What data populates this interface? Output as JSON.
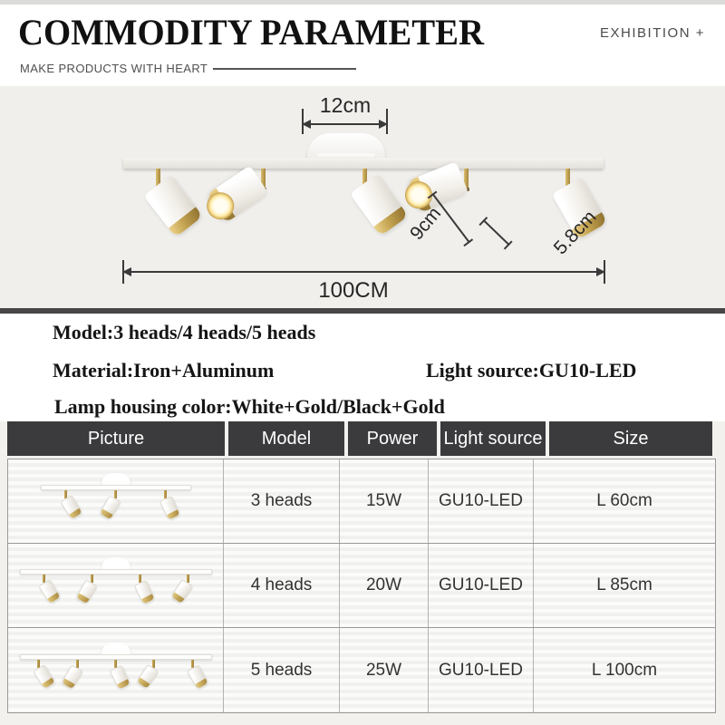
{
  "header": {
    "title": "COMMODITY PARAMETER",
    "corner_label": "EXHIBITION +",
    "tagline": "MAKE PRODUCTS WITH HEART"
  },
  "showcase": {
    "canopy_width_label": "12cm",
    "head_length_label": "9cm",
    "head_diameter_label": "5.8cm",
    "total_length_label": "100CM"
  },
  "specs": {
    "model": "Model:3 heads/4 heads/5 heads",
    "material": "Material:Iron+Aluminum",
    "light_source": "Light source:GU10-LED",
    "lamp_color": "Lamp housing color:White+Gold/Black+Gold"
  },
  "table": {
    "headers": [
      "Picture",
      "Model",
      "Power",
      "Light source",
      "Size"
    ],
    "rows": [
      {
        "heads_count": 3,
        "model": "3 heads",
        "power": "15W",
        "light_source": "GU10-LED",
        "size": "L 60cm"
      },
      {
        "heads_count": 4,
        "model": "4 heads",
        "power": "20W",
        "light_source": "GU10-LED",
        "size": "L 85cm"
      },
      {
        "heads_count": 5,
        "model": "5 heads",
        "power": "25W",
        "light_source": "GU10-LED",
        "size": "L 100cm"
      }
    ]
  },
  "colors": {
    "gold": "#bb9a4d",
    "table_header_bg": "#3b3b3d",
    "text_dark": "#151515",
    "dim_line": "#3a3a3a",
    "showcase_bg": "#f0efec"
  }
}
